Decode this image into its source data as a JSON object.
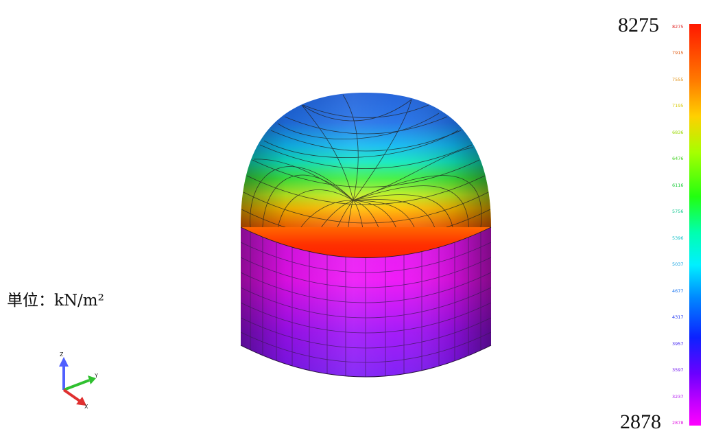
{
  "figure": {
    "unit_label": "単位：kN/m²",
    "max_label": "8275",
    "min_label": "2878"
  },
  "legend": {
    "ticks": [
      "8275",
      "7915",
      "7555",
      "7195",
      "6836",
      "6476",
      "6116",
      "5756",
      "5396",
      "5037",
      "4677",
      "4317",
      "3957",
      "3597",
      "3237",
      "2878"
    ],
    "tick_colors": [
      "#e02020",
      "#e05a10",
      "#e09010",
      "#d8c800",
      "#9ad800",
      "#40d020",
      "#10c830",
      "#10c890",
      "#10c0c8",
      "#10a0e0",
      "#1070f0",
      "#1a30f0",
      "#3818f0",
      "#7010f0",
      "#b010f0",
      "#e010e0"
    ]
  },
  "axes": {
    "x": "X",
    "y": "Y",
    "z": "Z"
  }
}
